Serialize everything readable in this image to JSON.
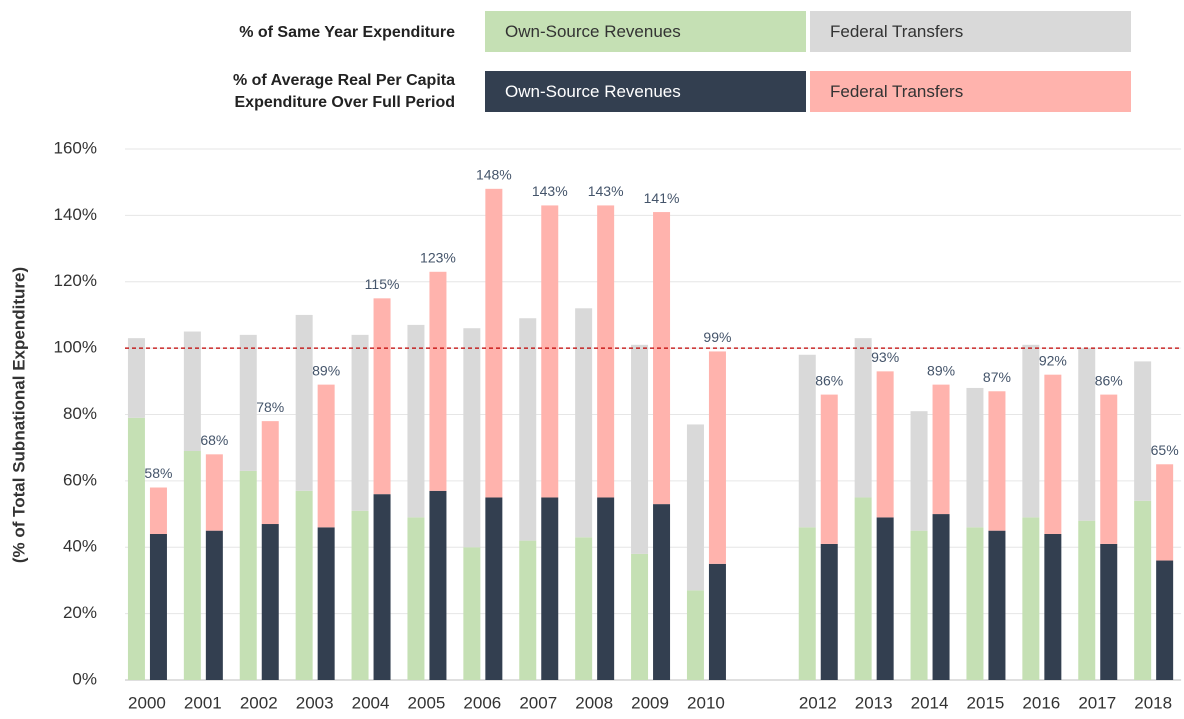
{
  "chart_data": {
    "type": "grouped_stacked_bar",
    "y_axis_label": "(% of Total Subnational Expenditure)",
    "categories": [
      "2000",
      "2001",
      "2002",
      "2003",
      "2004",
      "2005",
      "2006",
      "2007",
      "2008",
      "2009",
      "2010",
      null,
      "2012",
      "2013",
      "2014",
      "2015",
      "2016",
      "2017",
      "2018"
    ],
    "groups": [
      {
        "name": "% of Same Year Expenditure",
        "series": [
          {
            "name": "Own-Source Revenues",
            "color": "#c5e0b4",
            "values": [
              79,
              69,
              63,
              57,
              51,
              49,
              40,
              42,
              43,
              38,
              27,
              null,
              46,
              55,
              45,
              46,
              49,
              48,
              54
            ]
          },
          {
            "name": "Federal Transfers",
            "color": "#d9d9d9",
            "values": [
              24,
              36,
              41,
              53,
              53,
              58,
              66,
              67,
              69,
              63,
              50,
              null,
              52,
              48,
              36,
              42,
              52,
              52,
              42
            ]
          }
        ]
      },
      {
        "name": "% of Average Real Per Capita Expenditure Over Full Period",
        "series": [
          {
            "name": "Own-Source Revenues",
            "color": "#333f50",
            "values": [
              44,
              45,
              47,
              46,
              56,
              57,
              55,
              55,
              55,
              53,
              35,
              null,
              41,
              49,
              50,
              45,
              44,
              41,
              36
            ]
          },
          {
            "name": "Federal Transfers",
            "color": "#ffb3ad",
            "values": [
              14,
              23,
              31,
              43,
              59,
              66,
              93,
              88,
              88,
              88,
              64,
              null,
              45,
              44,
              39,
              42,
              48,
              45,
              29
            ]
          }
        ],
        "totals": [
          58,
          68,
          78,
          89,
          115,
          123,
          148,
          143,
          143,
          141,
          99,
          null,
          86,
          93,
          89,
          87,
          92,
          86,
          65
        ],
        "total_labels": [
          "58%",
          "68%",
          "78%",
          "89%",
          "115%",
          "123%",
          "148%",
          "143%",
          "143%",
          "141%",
          "99%",
          null,
          "86%",
          "93%",
          "89%",
          "87%",
          "92%",
          "86%",
          "65%"
        ]
      }
    ],
    "ylim": [
      0,
      160
    ],
    "yticks": [
      {
        "value": 0,
        "label": "0%"
      },
      {
        "value": 20,
        "label": "20%"
      },
      {
        "value": 40,
        "label": "40%"
      },
      {
        "value": 60,
        "label": "60%"
      },
      {
        "value": 80,
        "label": "80%"
      },
      {
        "value": 100,
        "label": "100%"
      },
      {
        "value": 120,
        "label": "120%"
      },
      {
        "value": 140,
        "label": "140%"
      },
      {
        "value": 160,
        "label": "160%"
      }
    ],
    "grid": true,
    "reference_line": {
      "value": 100,
      "color": "#c00000"
    }
  }
}
